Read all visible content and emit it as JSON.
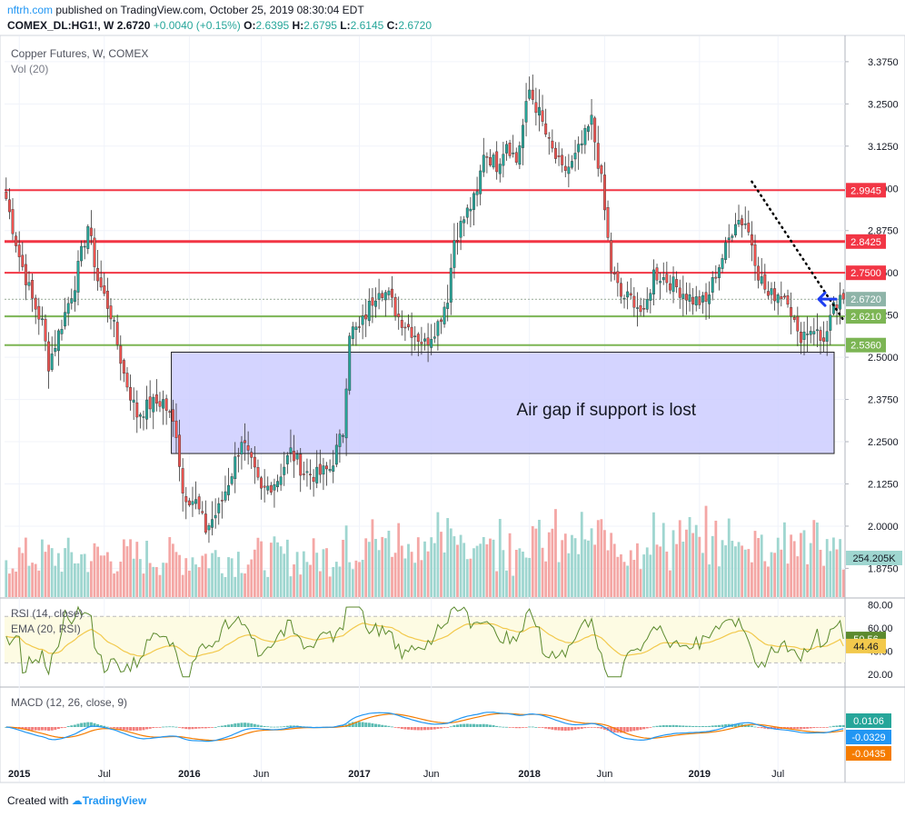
{
  "header": {
    "brand": "nftrh.com",
    "published": " published on TradingView.com, October 25, 2019 08:30:04 EDT",
    "symbol": "COMEX_DL:HG1!, W",
    "last": "2.6720",
    "change": "+0.0040 (+0.15%)",
    "o_label": "O:",
    "o": "2.6395",
    "h_label": "H:",
    "h": "2.6795",
    "l_label": "L:",
    "l": "2.6145",
    "c_label": "C:",
    "c": "2.6720"
  },
  "footer": {
    "created_with": "Created with",
    "brand": "TradingView"
  },
  "colors": {
    "up": "#26a69a",
    "down": "#ef5350",
    "vol_up": "#9fd6d0",
    "vol_down": "#f4a7a5",
    "resistance": "#f23645",
    "support": "#7cb554",
    "zone_fill": "#ccccff",
    "zone_border": "#222222",
    "rsi_line": "#5c8a2e",
    "rsi_ema": "#f2c94c",
    "rsi_band": "#fdfbe3",
    "macd": "#2196f3",
    "signal": "#f57c00",
    "arrow": "#1e3ff0"
  },
  "chart_data": {
    "type": "candlestick",
    "title": "Copper Futures, W, COMEX",
    "volume_label": "Vol (20)",
    "ylim": [
      1.79,
      3.45
    ],
    "yticks": [
      "3.3750",
      "3.2500",
      "3.1250",
      "3.0000",
      "2.8750",
      "2.7500",
      "2.6250",
      "2.5000",
      "2.3750",
      "2.2500",
      "2.1250",
      "2.0000",
      "1.8750"
    ],
    "x_labels": [
      "2015",
      "Jul",
      "2016",
      "Jun",
      "2017",
      "Jun",
      "2018",
      "Jun",
      "2019",
      "Jul"
    ],
    "x_label_week": [
      4,
      30,
      56,
      78,
      108,
      130,
      160,
      183,
      212,
      236
    ],
    "n_weeks": 257,
    "key_closes": [
      [
        0,
        2.97
      ],
      [
        4,
        2.8
      ],
      [
        8,
        2.67
      ],
      [
        11,
        2.6
      ],
      [
        13,
        2.48
      ],
      [
        17,
        2.6
      ],
      [
        21,
        2.72
      ],
      [
        25,
        2.89
      ],
      [
        28,
        2.73
      ],
      [
        32,
        2.63
      ],
      [
        36,
        2.45
      ],
      [
        40,
        2.33
      ],
      [
        44,
        2.36
      ],
      [
        48,
        2.37
      ],
      [
        52,
        2.28
      ],
      [
        54,
        2.1
      ],
      [
        58,
        2.07
      ],
      [
        61,
        1.99
      ],
      [
        65,
        2.05
      ],
      [
        69,
        2.16
      ],
      [
        72,
        2.26
      ],
      [
        75,
        2.18
      ],
      [
        78,
        2.1
      ],
      [
        83,
        2.14
      ],
      [
        87,
        2.22
      ],
      [
        91,
        2.16
      ],
      [
        95,
        2.15
      ],
      [
        99,
        2.17
      ],
      [
        103,
        2.28
      ],
      [
        105,
        2.58
      ],
      [
        108,
        2.58
      ],
      [
        111,
        2.65
      ],
      [
        114,
        2.71
      ],
      [
        117,
        2.68
      ],
      [
        120,
        2.62
      ],
      [
        124,
        2.58
      ],
      [
        128,
        2.54
      ],
      [
        132,
        2.6
      ],
      [
        135,
        2.68
      ],
      [
        137,
        2.85
      ],
      [
        141,
        2.93
      ],
      [
        144,
        2.98
      ],
      [
        146,
        3.11
      ],
      [
        150,
        3.07
      ],
      [
        153,
        3.14
      ],
      [
        156,
        3.08
      ],
      [
        160,
        3.29
      ],
      [
        163,
        3.22
      ],
      [
        166,
        3.13
      ],
      [
        170,
        3.05
      ],
      [
        173,
        3.07
      ],
      [
        176,
        3.13
      ],
      [
        179,
        3.2
      ],
      [
        182,
        3.02
      ],
      [
        185,
        2.76
      ],
      [
        188,
        2.68
      ],
      [
        192,
        2.67
      ],
      [
        195,
        2.62
      ],
      [
        198,
        2.75
      ],
      [
        202,
        2.73
      ],
      [
        206,
        2.7
      ],
      [
        210,
        2.67
      ],
      [
        214,
        2.66
      ],
      [
        217,
        2.75
      ],
      [
        220,
        2.82
      ],
      [
        223,
        2.91
      ],
      [
        226,
        2.9
      ],
      [
        228,
        2.84
      ],
      [
        230,
        2.75
      ],
      [
        233,
        2.68
      ],
      [
        236,
        2.69
      ],
      [
        239,
        2.68
      ],
      [
        242,
        2.56
      ],
      [
        245,
        2.58
      ],
      [
        247,
        2.59
      ],
      [
        249,
        2.55
      ],
      [
        251,
        2.57
      ],
      [
        253,
        2.64
      ],
      [
        256,
        2.672
      ]
    ],
    "levels": [
      {
        "name": "resistance",
        "value": 2.9945,
        "label": "2.9945",
        "heavy": false
      },
      {
        "name": "resistance",
        "value": 2.8425,
        "label": "2.8425",
        "heavy": true
      },
      {
        "name": "resistance",
        "value": 2.75,
        "label": "2.7500",
        "heavy": false
      },
      {
        "name": "support",
        "value": 2.621,
        "label": "2.6210",
        "heavy": false
      },
      {
        "name": "support",
        "value": 2.536,
        "label": "2.5360",
        "heavy": false
      }
    ],
    "last_price": {
      "value": 2.672,
      "label": "2.6720"
    },
    "annotation": {
      "text": "Air gap if support is lost",
      "y_top": 2.515,
      "y_bottom": 2.215,
      "week_start": 51,
      "week_end": 257
    },
    "trendline": {
      "from_week": 228,
      "from_price": 3.02,
      "to_week": 256,
      "to_price": 2.61
    },
    "volume": {
      "last_label": "254.205K"
    },
    "rsi": {
      "title": "RSI (14, close)",
      "ema_title": "EMA (20, RSI)",
      "ylim": [
        10,
        85
      ],
      "yticks": [
        "80.00",
        "60.00",
        "40.00",
        "20.00"
      ],
      "band": [
        30,
        70
      ],
      "last": "50.56",
      "ema_last": "44.46",
      "last_value": 50.56,
      "ema_last_value": 44.46
    },
    "macd": {
      "title": "MACD (12, 26, close, 9)",
      "hist_last": "0.0106",
      "macd_last": "-0.0329",
      "signal_last": "-0.0435",
      "hist_last_value": 0.0106,
      "macd_last_value": -0.0329,
      "signal_last_value": -0.0435
    }
  }
}
